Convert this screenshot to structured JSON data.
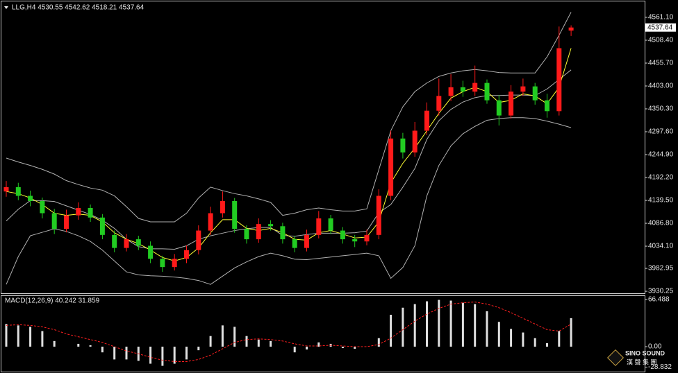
{
  "chart_data": [
    {
      "type": "candlestick",
      "title": "LLG,H4  4530.55 4542.62 4518.21 4537.64",
      "up_color": "#ff1a1a",
      "down_color": "#22cc22",
      "open": [
        4160,
        4170,
        4150,
        4138,
        4110,
        4074,
        4105,
        4122,
        4100,
        4060,
        4030,
        4050,
        4035,
        4005,
        3986,
        4005,
        4025,
        4070,
        4110,
        4138,
        4074,
        4050,
        4085,
        4080,
        4050,
        4030,
        4060,
        4098,
        4070,
        4050,
        4045,
        4060,
        4150,
        4282,
        4250,
        4300,
        4346,
        4380,
        4400,
        4390,
        4410,
        4370,
        4335,
        4390,
        4402,
        4370,
        4345,
        4530.55
      ],
      "high": [
        4184,
        4180,
        4162,
        4146,
        4120,
        4118,
        4135,
        4130,
        4108,
        4070,
        4062,
        4058,
        4045,
        4012,
        4016,
        4036,
        4082,
        4125,
        4160,
        4145,
        4082,
        4098,
        4094,
        4088,
        4058,
        4072,
        4115,
        4106,
        4078,
        4060,
        4072,
        4165,
        4300,
        4295,
        4320,
        4365,
        4420,
        4430,
        4415,
        4450,
        4418,
        4382,
        4405,
        4420,
        4410,
        4385,
        4540,
        4542.62
      ],
      "low": [
        4148,
        4140,
        4126,
        4098,
        4062,
        4066,
        4095,
        4090,
        4050,
        4020,
        4022,
        4025,
        3995,
        3975,
        3978,
        3995,
        4015,
        4060,
        4100,
        4065,
        4040,
        4042,
        4070,
        4040,
        4020,
        4022,
        4052,
        4062,
        4040,
        4032,
        4036,
        4050,
        4140,
        4236,
        4240,
        4290,
        4335,
        4368,
        4378,
        4380,
        4362,
        4312,
        4328,
        4380,
        4360,
        4330,
        4335,
        4518.21
      ],
      "close": [
        4170,
        4150,
        4138,
        4110,
        4074,
        4105,
        4122,
        4100,
        4060,
        4030,
        4050,
        4035,
        4005,
        3986,
        4005,
        4025,
        4070,
        4110,
        4138,
        4074,
        4050,
        4085,
        4080,
        4050,
        4030,
        4060,
        4098,
        4070,
        4050,
        4045,
        4060,
        4150,
        4282,
        4250,
        4300,
        4346,
        4380,
        4400,
        4390,
        4410,
        4370,
        4335,
        4390,
        4402,
        4370,
        4345,
        4490,
        4537.64
      ],
      "overlays": [
        {
          "color": "#b0b0b0",
          "values": [
            4237,
            4228,
            4220,
            4211,
            4200,
            4185,
            4176,
            4168,
            4163,
            4150,
            4125,
            4098,
            4090,
            4090,
            4090,
            4110,
            4145,
            4170,
            4162,
            4155,
            4150,
            4143,
            4135,
            4105,
            4110,
            4118,
            4122,
            4118,
            4115,
            4115,
            4120,
            4210,
            4300,
            4355,
            4390,
            4410,
            4425,
            4433,
            4438,
            4441,
            4438,
            4434,
            4433,
            4433,
            4433,
            4470,
            4520,
            4573
          ]
        },
        {
          "color": "#b0b0b0",
          "values": [
            4092,
            4119,
            4139,
            4139,
            4137,
            4127,
            4117,
            4107,
            4094,
            4075,
            4050,
            4033,
            4028,
            4028,
            4027,
            4035,
            4050,
            4058,
            4064,
            4070,
            4074,
            4077,
            4077,
            4059,
            4057,
            4061,
            4064,
            4064,
            4064,
            4065,
            4069,
            4111,
            4130,
            4170,
            4213,
            4280,
            4323,
            4349,
            4366,
            4376,
            4381,
            4381,
            4382,
            4382,
            4381,
            4396,
            4418,
            4440
          ]
        },
        {
          "color": "#b0b0b0",
          "values": [
            3946,
            4010,
            4058,
            4066,
            4074,
            4068,
            4058,
            4045,
            4025,
            4000,
            3975,
            3968,
            3966,
            3965,
            3963,
            3960,
            3955,
            3946,
            3965,
            3984,
            3998,
            4010,
            4018,
            4012,
            4004,
            4003,
            4006,
            4009,
            4012,
            4015,
            4018,
            4012,
            3960,
            3985,
            4035,
            4150,
            4220,
            4265,
            4293,
            4310,
            4324,
            4328,
            4330,
            4330,
            4328,
            4322,
            4315,
            4307
          ]
        },
        {
          "color": "#ffff33",
          "values": [
            4160,
            4155,
            4145,
            4130,
            4110,
            4105,
            4108,
            4105,
            4090,
            4065,
            4050,
            4040,
            4025,
            4008,
            4000,
            4008,
            4030,
            4065,
            4095,
            4095,
            4075,
            4070,
            4075,
            4065,
            4050,
            4048,
            4065,
            4070,
            4062,
            4053,
            4055,
            4090,
            4180,
            4225,
            4260,
            4300,
            4340,
            4375,
            4390,
            4400,
            4390,
            4365,
            4370,
            4385,
            4380,
            4362,
            4400,
            4490
          ]
        }
      ],
      "last_price": 4537.64,
      "ylim": [
        3924,
        4593
      ],
      "yticks": [
        {
          "value": 4561.1,
          "label": "4561.10"
        },
        {
          "value": 4508.4,
          "label": "4508.40"
        },
        {
          "value": 4455.7,
          "label": "4455.70"
        },
        {
          "value": 4403,
          "label": "4403.00"
        },
        {
          "value": 4350.3,
          "label": "4350.30"
        },
        {
          "value": 4297.6,
          "label": "4297.60"
        },
        {
          "value": 4244.9,
          "label": "4244.90"
        },
        {
          "value": 4192.2,
          "label": "4192.20"
        },
        {
          "value": 4139.5,
          "label": "4139.50"
        },
        {
          "value": 4086.8,
          "label": "4086.80"
        },
        {
          "value": 4034.1,
          "label": "4034.10"
        },
        3982.95,
        3930.25
      ]
    },
    {
      "type": "macd",
      "title": "MACD(12,26,9) 40.242 31.859",
      "histogram_color": "#e0e0e0",
      "signal_color": "#ff2020",
      "histogram": [
        32,
        30,
        28,
        22,
        8,
        0,
        4,
        2,
        -8,
        -18,
        -18,
        -20,
        -24,
        -27,
        -24,
        -18,
        -5,
        15,
        30,
        28,
        15,
        10,
        8,
        0,
        -8,
        -4,
        6,
        4,
        -2,
        -3,
        0,
        12,
        45,
        55,
        60,
        64,
        66,
        65,
        62,
        60,
        50,
        35,
        25,
        20,
        12,
        5,
        22,
        40.242
      ],
      "signal": [
        30,
        31,
        30,
        28,
        24,
        18,
        14,
        10,
        6,
        0,
        -6,
        -10,
        -15,
        -19,
        -21,
        -21,
        -18,
        -12,
        -3,
        6,
        10,
        11,
        10,
        8,
        4,
        1,
        1,
        2,
        1,
        0,
        0,
        3,
        12,
        24,
        36,
        46,
        54,
        60,
        62,
        63,
        60,
        55,
        48,
        40,
        32,
        24,
        22,
        31.859
      ],
      "ylim": [
        -34.2,
        71.4
      ],
      "yticks": [
        66.488,
        {
          "value": 0,
          "label": "0.00"
        },
        -28.832
      ]
    }
  ],
  "watermark": "SINO SOUND",
  "watermark_sub": "漢 聲 集 團"
}
